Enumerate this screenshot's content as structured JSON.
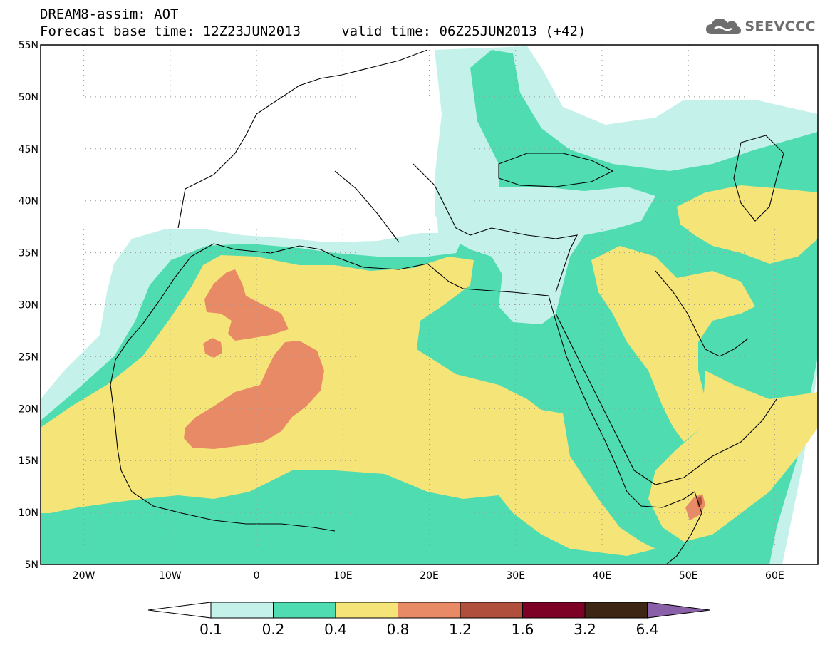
{
  "header": {
    "title": "DREAM8-assim: AOT",
    "subtitle": "Forecast base time: 12Z23JUN2013     valid time: 06Z25JUN2013 (+42)",
    "logo_text": "SEEVCCC"
  },
  "map": {
    "variable": "AOT",
    "lon_range": [
      -25,
      65
    ],
    "lat_range": [
      5,
      55
    ],
    "lon_labels": [
      "20W",
      "10W",
      "0",
      "10E",
      "20E",
      "30E",
      "40E",
      "50E",
      "60E"
    ],
    "lat_labels": [
      "55N",
      "50N",
      "45N",
      "40N",
      "35N",
      "30N",
      "25N",
      "20N",
      "15N",
      "10N",
      "5N"
    ],
    "grid": true
  },
  "legend": {
    "labels": [
      "0.1",
      "0.2",
      "0.4",
      "0.8",
      "1.2",
      "1.6",
      "3.2",
      "6.4"
    ],
    "colors": [
      "#ffffff",
      "#c4f2ea",
      "#4fdcb0",
      "#f5e478",
      "#e88a66",
      "#b04f3c",
      "#7d0025",
      "#3d2614",
      "#8a60a8"
    ]
  }
}
